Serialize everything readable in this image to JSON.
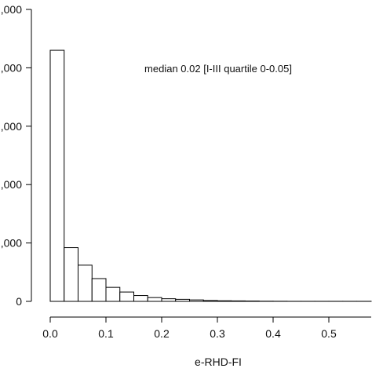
{
  "chart_data": {
    "type": "bar",
    "subtype": "histogram",
    "xlabel": "e-RHD-FI",
    "ylabel": "",
    "annotation": "median 0.02 [I-III quartile 0-0.05]",
    "xlim": [
      0,
      0.6
    ],
    "ylim": [
      0,
      5000
    ],
    "x_ticks": [
      0.0,
      0.1,
      0.2,
      0.3,
      0.4,
      0.5
    ],
    "x_tick_labels": [
      "0.0",
      "0.1",
      "0.2",
      "0.3",
      "0.4",
      "0.5"
    ],
    "y_ticks": [
      0,
      1000,
      2000,
      3000,
      4000,
      5000
    ],
    "y_tick_labels": [
      "0",
      ",000",
      ",000",
      ",000",
      ",000",
      ",000"
    ],
    "bin_width": 0.025,
    "bins": [
      {
        "start": 0.0,
        "end": 0.025,
        "count": 4300
      },
      {
        "start": 0.025,
        "end": 0.05,
        "count": 920
      },
      {
        "start": 0.05,
        "end": 0.075,
        "count": 620
      },
      {
        "start": 0.075,
        "end": 0.1,
        "count": 390
      },
      {
        "start": 0.1,
        "end": 0.125,
        "count": 240
      },
      {
        "start": 0.125,
        "end": 0.15,
        "count": 160
      },
      {
        "start": 0.15,
        "end": 0.175,
        "count": 100
      },
      {
        "start": 0.175,
        "end": 0.2,
        "count": 65
      },
      {
        "start": 0.2,
        "end": 0.225,
        "count": 45
      },
      {
        "start": 0.225,
        "end": 0.25,
        "count": 35
      },
      {
        "start": 0.25,
        "end": 0.275,
        "count": 25
      },
      {
        "start": 0.275,
        "end": 0.3,
        "count": 15
      },
      {
        "start": 0.3,
        "end": 0.325,
        "count": 10
      },
      {
        "start": 0.325,
        "end": 0.35,
        "count": 8
      },
      {
        "start": 0.35,
        "end": 0.375,
        "count": 6
      },
      {
        "start": 0.375,
        "end": 0.4,
        "count": 3
      },
      {
        "start": 0.4,
        "end": 0.425,
        "count": 2
      },
      {
        "start": 0.425,
        "end": 0.45,
        "count": 1
      },
      {
        "start": 0.45,
        "end": 0.475,
        "count": 1
      },
      {
        "start": 0.475,
        "end": 0.5,
        "count": 1
      },
      {
        "start": 0.5,
        "end": 0.525,
        "count": 1
      },
      {
        "start": 0.525,
        "end": 0.55,
        "count": 1
      },
      {
        "start": 0.55,
        "end": 0.575,
        "count": 1
      },
      {
        "start": 0.575,
        "end": 0.6,
        "count": 1
      }
    ],
    "grid": false,
    "colors": {
      "bar_fill": "#ffffff",
      "bar_stroke": "#000000",
      "axis": "#000000"
    }
  }
}
